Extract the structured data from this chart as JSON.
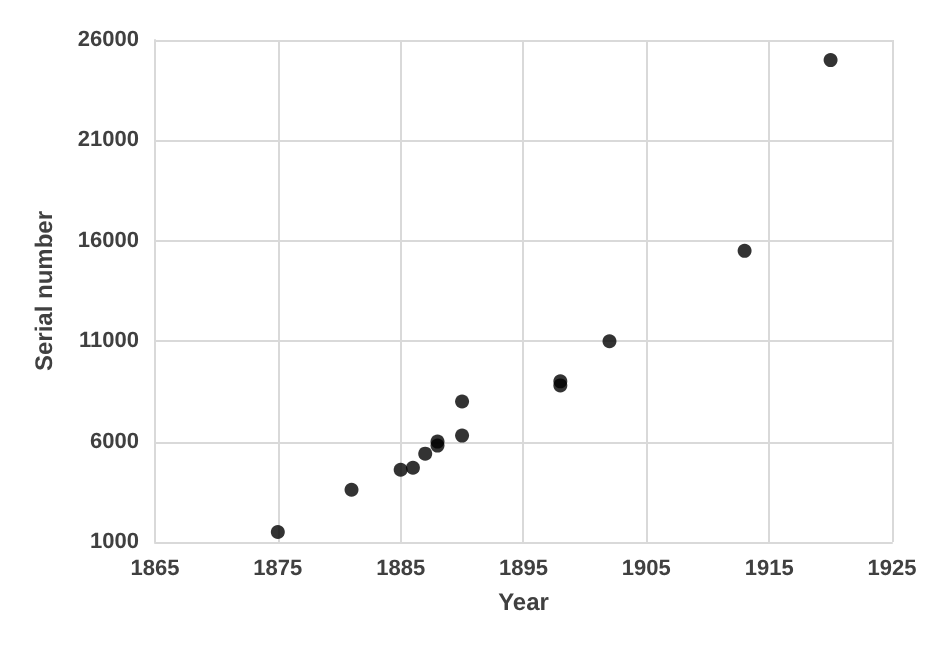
{
  "chart_data": {
    "type": "scatter",
    "xlabel": "Year",
    "ylabel": "Serial number",
    "x": [
      1875,
      1881,
      1885,
      1886,
      1887,
      1888,
      1888,
      1890,
      1890,
      1898,
      1898,
      1902,
      1913,
      1920
    ],
    "values": [
      1500,
      3600,
      4600,
      4700,
      5400,
      5800,
      6000,
      6300,
      8000,
      8800,
      9000,
      11000,
      15500,
      25000
    ],
    "color": "#000000",
    "marker": "circle",
    "xlim": [
      1865,
      1925
    ],
    "xticks": [
      1865,
      1875,
      1885,
      1895,
      1905,
      1915,
      1925
    ],
    "ylim": [
      1000,
      26000
    ],
    "yticks": [
      1000,
      6000,
      11000,
      16000,
      21000,
      26000
    ],
    "grid": true
  }
}
